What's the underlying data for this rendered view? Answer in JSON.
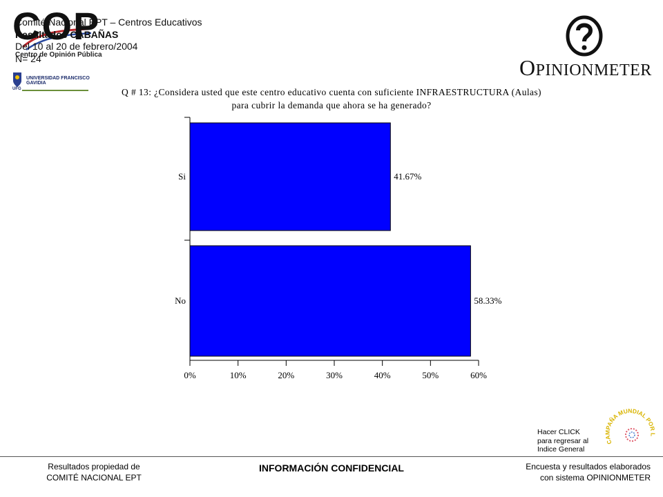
{
  "header": {
    "line1": "Comité Nacional EPT  – Centros Educativos",
    "line2": "Resultados CABAÑAS",
    "line3": "Del 10 al 20 de febrero/2004",
    "line4": "N= 24"
  },
  "cop_logo": {
    "letters": "COP",
    "subtitle": "Centro de Opinión Pública",
    "university": "UNIVERSIDAD FRANCISCO GAVIDIA",
    "ufg": "UFG"
  },
  "opinionmeter_logo": {
    "first": "O",
    "rest": "PINIONMETER"
  },
  "question": {
    "line1": "Q # 13: ¿Considera usted que este centro educativo cuenta con suficiente INFRAESTRUCTURA (Aulas)",
    "line2": "para cubrir la demanda que ahora se ha generado?"
  },
  "chart_data": {
    "type": "bar",
    "orientation": "horizontal",
    "categories": [
      "Si",
      "No"
    ],
    "values": [
      41.67,
      58.33
    ],
    "value_labels": [
      "41.67%",
      "58.33%"
    ],
    "xlim": [
      0,
      60
    ],
    "xticks": [
      "0%",
      "10%",
      "20%",
      "30%",
      "40%",
      "50%",
      "60%"
    ],
    "bar_color": "#0000ff",
    "grid": false,
    "legend": "none"
  },
  "footer": {
    "left_line1": "Resultados propiedad de",
    "left_line2": "COMITÉ  NACIONAL  EPT",
    "center": "INFORMACIÓN CONFIDENCIAL",
    "right_line1": "Encuesta y resultados elaborados",
    "right_line2": "con sistema OPINIONMETER"
  },
  "back_link": {
    "line1": "Hacer CLICK",
    "line2": "para regresar al",
    "line3": "Indice General"
  },
  "campaign_logo": {
    "text": "CAMPAÑA MUNDIAL POR LA EDUCACIÓN"
  }
}
